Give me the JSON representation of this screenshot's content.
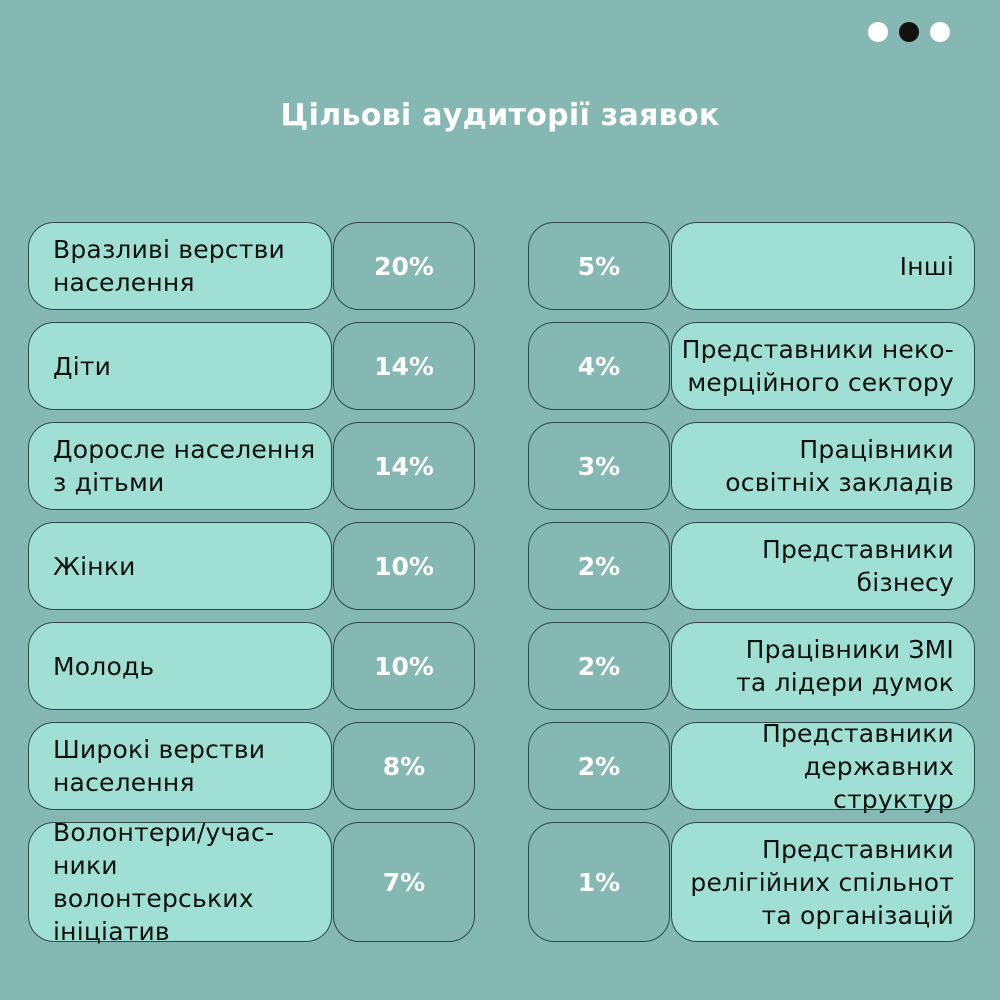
{
  "title": "Цільові аудиторії заявок",
  "pagination": {
    "dots": [
      {
        "state": "inactive",
        "color": "#ffffff"
      },
      {
        "state": "active",
        "color": "#111111"
      },
      {
        "state": "inactive",
        "color": "#ffffff"
      }
    ]
  },
  "colors": {
    "background": "#85b8b3",
    "label_fill": "#a0dfd3",
    "border": "#2c4a47",
    "title_text": "#ffffff",
    "percent_text": "#ffffff",
    "label_text": "#111111"
  },
  "left": [
    {
      "label": "Вразливі верстви\nнаселення",
      "percent": "20%"
    },
    {
      "label": "Діти",
      "percent": "14%"
    },
    {
      "label": "Доросле населення\nз дітьми",
      "percent": "14%"
    },
    {
      "label": "Жінки",
      "percent": "10%"
    },
    {
      "label": "Молодь",
      "percent": "10%"
    },
    {
      "label": "Широкі верстви\nнаселення",
      "percent": "8%"
    },
    {
      "label": "Волонтери/учас-\nники волонтерських\nініціатив",
      "percent": "7%"
    }
  ],
  "right": [
    {
      "label": "Інші",
      "percent": "5%"
    },
    {
      "label": "Представники неко-\nмерційного сектору",
      "percent": "4%"
    },
    {
      "label": "Працівники\nосвітніх закладів",
      "percent": "3%"
    },
    {
      "label": "Представники\nбізнесу",
      "percent": "2%"
    },
    {
      "label": "Працівники ЗМІ\nта лідери думок",
      "percent": "2%"
    },
    {
      "label": "Представники\nдержавних структур",
      "percent": "2%"
    },
    {
      "label": "Представники\nрелігійних спільнот\nта організацій",
      "percent": "1%"
    }
  ]
}
